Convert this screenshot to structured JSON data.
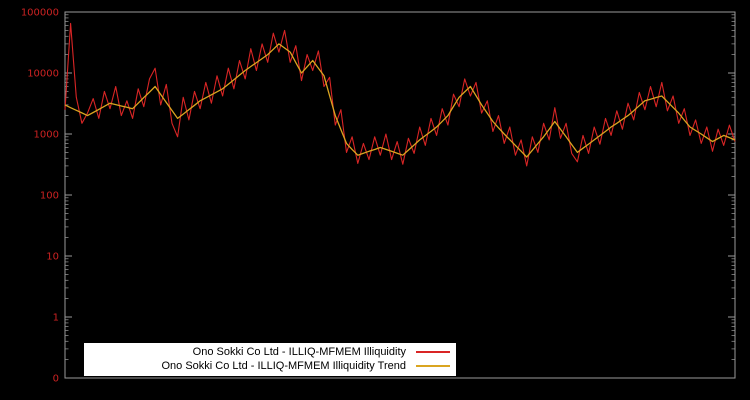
{
  "colors": {
    "background": "#000000",
    "axis": "#9a9a9a",
    "tick_label": "#cc2222",
    "legend_bg": "#ffffff",
    "legend_text": "#000000"
  },
  "legend": {
    "items": [
      {
        "label": "Ono Sokki Co Ltd - ILLIQ-MFMEM Illiquidity"
      },
      {
        "label": "Ono Sokki Co Ltd - ILLIQ-MFMEM Illiquidity Trend"
      }
    ]
  },
  "chart_data": {
    "type": "line",
    "title": "",
    "xlabel": "",
    "ylabel": "",
    "grid": false,
    "legend_position": "bottom-center",
    "x_axis": {
      "tick_labels": []
    },
    "y_axis": {
      "scale": "log",
      "tick_labels": [
        "100000",
        "10000",
        "1000",
        "100",
        "10",
        "1",
        "0"
      ],
      "log10_range": [
        -1,
        5
      ]
    },
    "series": [
      {
        "name": "Ono Sokki Co Ltd - ILLIQ-MFMEM Illiquidity",
        "color": "#d92525",
        "values": [
          2500,
          65000,
          4000,
          1500,
          2200,
          3800,
          1800,
          5000,
          2600,
          6000,
          2000,
          3500,
          1800,
          5500,
          2800,
          8000,
          12000,
          3000,
          6500,
          1500,
          900,
          4000,
          1700,
          5000,
          2600,
          7000,
          3200,
          9000,
          4200,
          12000,
          5500,
          16000,
          8000,
          25000,
          11000,
          30000,
          15000,
          45000,
          22000,
          50000,
          15000,
          28000,
          7500,
          20000,
          11000,
          23000,
          6000,
          8500,
          1400,
          2500,
          500,
          900,
          330,
          700,
          380,
          900,
          450,
          1000,
          380,
          750,
          320,
          850,
          480,
          1300,
          650,
          1800,
          950,
          2600,
          1400,
          4500,
          2800,
          8000,
          4200,
          7000,
          2200,
          3500,
          1100,
          2000,
          700,
          1300,
          450,
          800,
          300,
          900,
          500,
          1500,
          800,
          2700,
          850,
          1500,
          480,
          350,
          950,
          480,
          1300,
          680,
          1800,
          950,
          2400,
          1200,
          3200,
          1700,
          4800,
          2500,
          6000,
          2800,
          7000,
          2400,
          4200,
          1500,
          2600,
          950,
          1700,
          700,
          1300,
          520,
          1200,
          650,
          1400,
          750
        ]
      },
      {
        "name": "Ono Sokki Co Ltd - ILLIQ-MFMEM Illiquidity Trend",
        "color": "#daa520",
        "values": [
          3000,
          2700,
          2450,
          2220,
          2000,
          2250,
          2530,
          2840,
          3200,
          3030,
          2880,
          2740,
          2600,
          3200,
          3950,
          4870,
          6000,
          4440,
          3290,
          2430,
          1800,
          2120,
          2510,
          2960,
          3500,
          3920,
          4390,
          4910,
          5500,
          6540,
          7780,
          9250,
          11000,
          12770,
          14830,
          17220,
          20000,
          24500,
          30000,
          25700,
          22000,
          14800,
          10000,
          12650,
          16000,
          12000,
          9000,
          4240,
          2000,
          1180,
          700,
          560,
          450,
          483,
          520,
          558,
          600,
          559,
          520,
          484,
          450,
          545,
          660,
          800,
          940,
          1105,
          1300,
          1612,
          2000,
          2830,
          4000,
          4900,
          6000,
          4240,
          3000,
          2190,
          1600,
          1265,
          1000,
          806,
          650,
          522,
          420,
          541,
          698,
          900,
          1200,
          1600,
          1200,
          900,
          670,
          500,
          585,
          684,
          800,
          940,
          1105,
          1300,
          1500,
          1732,
          2000,
          2410,
          2905,
          3500,
          3720,
          3960,
          4200,
          3385,
          2730,
          2200,
          1690,
          1300,
          1140,
          1000,
          866,
          750,
          844,
          950,
          872,
          800
        ]
      }
    ]
  }
}
